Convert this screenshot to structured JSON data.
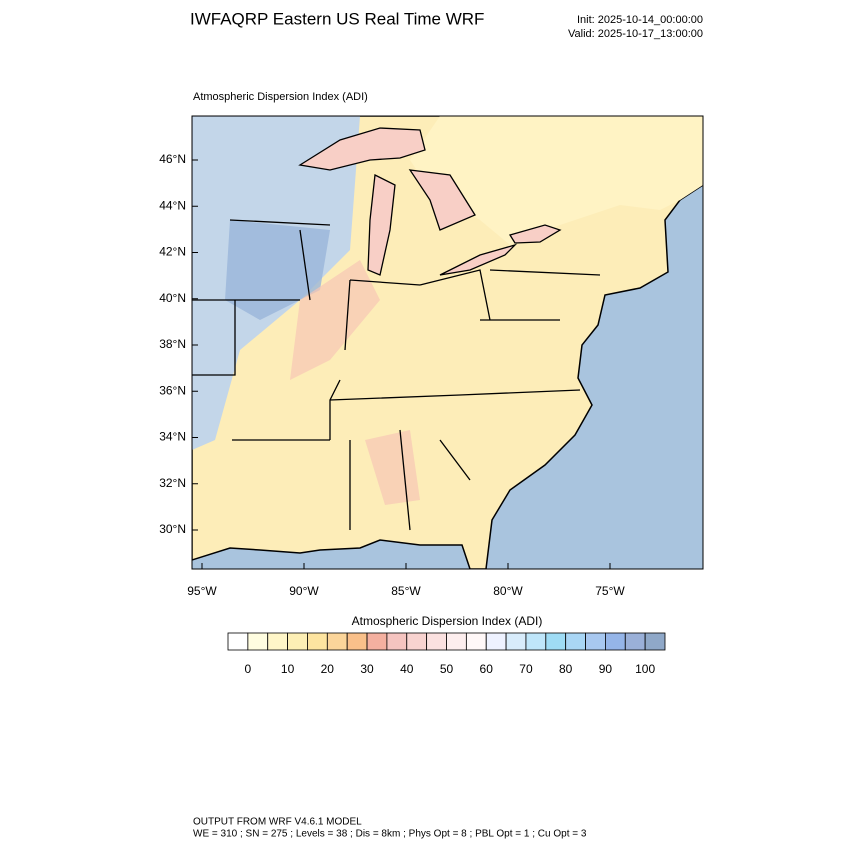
{
  "header": {
    "title": "IWFAQRP Eastern US Real Time WRF",
    "init": "Init: 2025-10-14_00:00:00",
    "valid": "Valid: 2025-10-17_13:00:00"
  },
  "map": {
    "title": "Atmospheric Dispersion Index   (ADI)",
    "lat_labels": [
      "46°N",
      "44°N",
      "42°N",
      "40°N",
      "38°N",
      "36°N",
      "34°N",
      "32°N",
      "30°N"
    ],
    "lon_labels": [
      "95°W",
      "90°W",
      "85°W",
      "80°W",
      "75°W"
    ]
  },
  "colorbar": {
    "title": "Atmospheric Dispersion Index  (ADI)",
    "xlim": [
      -5,
      105
    ],
    "ticks": [
      0,
      10,
      20,
      30,
      40,
      50,
      60,
      70,
      80,
      90,
      100
    ],
    "colors": [
      "#ffffff",
      "#fffde0",
      "#fff6c8",
      "#fdefb5",
      "#fde4a0",
      "#fbd59a",
      "#f9c08a",
      "#f4b0a0",
      "#f5c4c0",
      "#f8d3d0",
      "#fbe1e0",
      "#fdeeee",
      "#fff8f8",
      "#eef2ff",
      "#d8ecfb",
      "#bfe6fa",
      "#9fdcf5",
      "#a9d6f5",
      "#a8c8f0",
      "#95b5e8",
      "#9ab0d8",
      "#8fa8c8"
    ]
  },
  "footer": {
    "line1": "OUTPUT FROM WRF V4.6.1 MODEL",
    "line2": "WE = 310 ; SN = 275 ; Levels = 38 ; Dis = 8km ; Phys Opt = 8 ; PBL Opt = 1 ; Cu Opt = 3"
  }
}
